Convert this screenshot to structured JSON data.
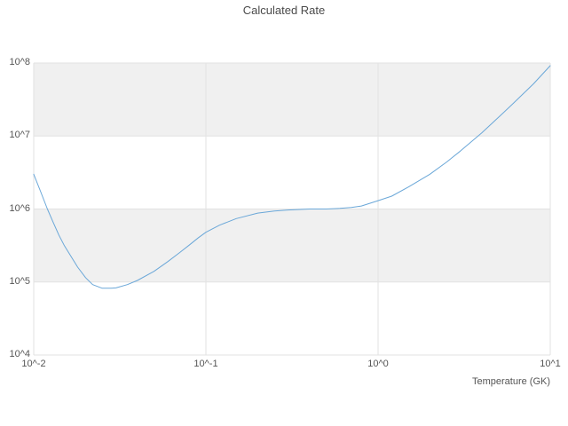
{
  "chart_data": {
    "type": "line",
    "title": "Calculated Rate",
    "xlabel": "Temperature (GK)",
    "ylabel": "",
    "x_scale": "log",
    "y_scale": "log",
    "xlim": [
      0.01,
      10
    ],
    "ylim": [
      10000.0,
      100000000.0
    ],
    "x_tick_values": [
      0.01,
      0.1,
      1,
      10
    ],
    "x_tick_labels": [
      "10^-2",
      "10^-1",
      "10^0",
      "10^1"
    ],
    "y_tick_values": [
      10000.0,
      100000.0,
      1000000.0,
      10000000.0,
      100000000.0
    ],
    "y_tick_labels": [
      "10^4",
      "10^5",
      "10^6",
      "10^7",
      "10^8"
    ],
    "grid": true,
    "band_style": "alternating horizontal decade bands (10^5-10^6 and 10^7-10^8 shaded)",
    "band_color": "#f0f0f0",
    "grid_color": "#e2e2e2",
    "line_color": "#6aa7d8",
    "text_color": "#555555",
    "legend": "none",
    "series": [
      {
        "name": "calculated-rate",
        "x": [
          0.01,
          0.011,
          0.012,
          0.013,
          0.014,
          0.015,
          0.016,
          0.018,
          0.02,
          0.022,
          0.025,
          0.028,
          0.03,
          0.035,
          0.04,
          0.05,
          0.06,
          0.07,
          0.08,
          0.09,
          0.1,
          0.12,
          0.15,
          0.2,
          0.25,
          0.3,
          0.4,
          0.5,
          0.6,
          0.7,
          0.8,
          1.0,
          1.2,
          1.5,
          2.0,
          2.5,
          3.0,
          4.0,
          5.0,
          6.0,
          8.0,
          10.0
        ],
        "y": [
          3000000.0,
          1700000.0,
          1000000.0,
          650000.0,
          440000.0,
          320000.0,
          250000.0,
          160000.0,
          115000.0,
          92000.0,
          82000.0,
          82000.0,
          83000.0,
          92000.0,
          105000.0,
          140000.0,
          190000.0,
          250000.0,
          320000.0,
          400000.0,
          480000.0,
          600000.0,
          740000.0,
          880000.0,
          940000.0,
          970000.0,
          1000000.0,
          1000000.0,
          1020000.0,
          1050000.0,
          1100000.0,
          1300000.0,
          1500000.0,
          2000000.0,
          3000000.0,
          4400000.0,
          6200000.0,
          11000000.0,
          18000000.0,
          27000000.0,
          52000000.0,
          92000000.0
        ]
      }
    ]
  }
}
